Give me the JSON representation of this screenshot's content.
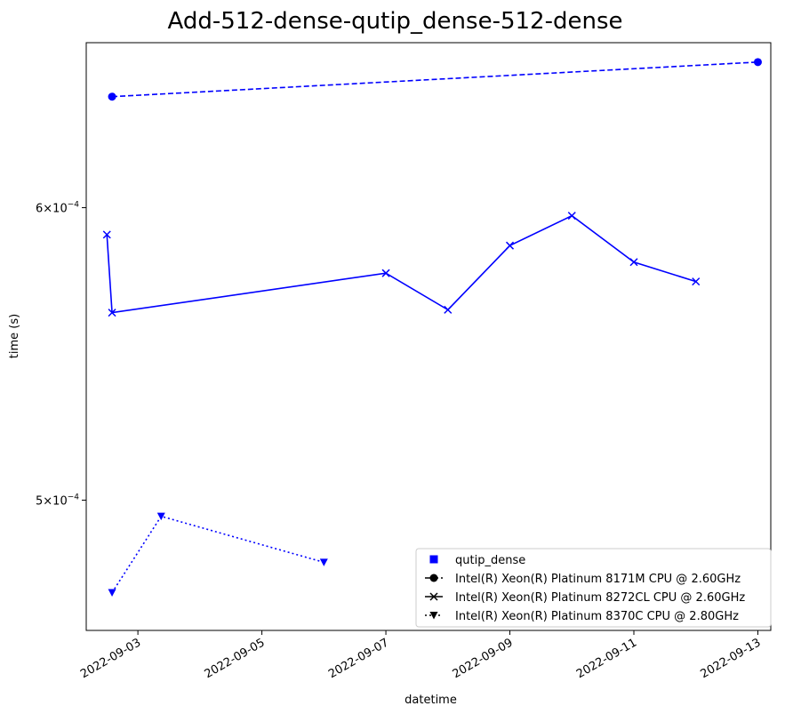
{
  "chart_data": {
    "type": "line",
    "title": "Add-512-dense-qutip_dense-512-dense",
    "xlabel": "datetime",
    "ylabel": "time (s)",
    "y_scale": "log",
    "xlim": [
      "2022-09-02T04:00",
      "2022-09-13T05:00"
    ],
    "ylim": [
      0.000461,
      0.000665
    ],
    "x_ticks": [
      "2022-09-03",
      "2022-09-05",
      "2022-09-07",
      "2022-09-09",
      "2022-09-11",
      "2022-09-13"
    ],
    "y_ticks": [
      {
        "value": 0.0006,
        "label_mantissa": "6",
        "label_exp": "−4"
      },
      {
        "value": 0.0005,
        "label_mantissa": "5",
        "label_exp": "−4"
      }
    ],
    "grid": false,
    "legend_position": "lower right",
    "legend_title_entry": "qutip_dense",
    "color": "#0000ff",
    "series": [
      {
        "name": "Intel(R) Xeon(R) Platinum 8171M CPU @ 2.60GHz",
        "line_style": "dashed",
        "marker": "circle",
        "x": [
          "2022-09-02T14:00",
          "2022-09-13T00:00"
        ],
        "y": [
          0.000643,
          0.000657
        ]
      },
      {
        "name": "Intel(R) Xeon(R) Platinum 8272CL CPU @ 2.60GHz",
        "line_style": "solid",
        "marker": "x",
        "x": [
          "2022-09-02T12:00",
          "2022-09-02T14:00",
          "2022-09-07T00:00",
          "2022-09-08T00:00",
          "2022-09-09T00:00",
          "2022-09-10T00:00",
          "2022-09-11T00:00",
          "2022-09-12T00:00"
        ],
        "y": [
          0.00059,
          0.000562,
          0.000576,
          0.000563,
          0.000586,
          0.000597,
          0.00058,
          0.000573
        ]
      },
      {
        "name": "Intel(R) Xeon(R) Platinum 8370C CPU @ 2.80GHz",
        "line_style": "dotted",
        "marker": "triangle-down",
        "x": [
          "2022-09-02T14:00",
          "2022-09-03T09:00",
          "2022-09-06T00:00"
        ],
        "y": [
          0.000472,
          0.000495,
          0.000481
        ]
      }
    ]
  }
}
